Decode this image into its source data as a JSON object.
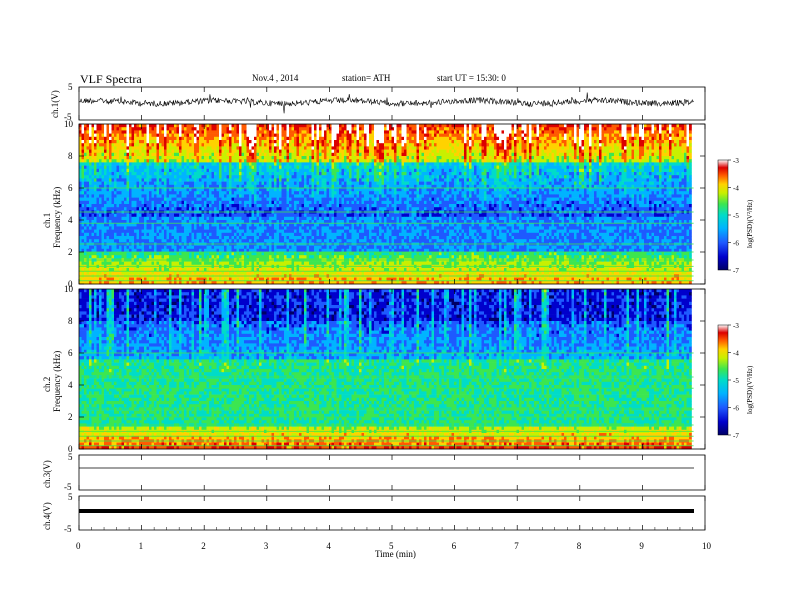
{
  "header": {
    "title": "VLF Spectra",
    "date": "Nov.4 , 2014",
    "station": "station= ATH",
    "start": "start UT = 15:30: 0"
  },
  "chart_data": [
    {
      "type": "line",
      "panel": "ch1-waveform",
      "ylabel": "ch.1(V)",
      "ylim": [
        -5,
        5
      ],
      "ytick_labels": [
        "5",
        "-5"
      ],
      "x_range_min": [
        0,
        9.82
      ],
      "description_values": {
        "mean": 0,
        "typical_range": [
          -1.5,
          1.5
        ]
      }
    },
    {
      "type": "heatmap",
      "panel": "ch1-spectrogram",
      "ylabel": "ch.1 Frequency (kHz)",
      "ylim": [
        0,
        10
      ],
      "ytick_labels": [
        "0",
        "2",
        "4",
        "6",
        "8",
        "10"
      ],
      "colorbar": {
        "label": "log(PSD)(V²/Hz)",
        "range": [
          -7,
          -3
        ],
        "tick_labels": [
          "-3",
          "-4",
          "-5",
          "-6",
          "-7"
        ]
      }
    },
    {
      "type": "heatmap",
      "panel": "ch2-spectrogram",
      "ylabel": "ch.2 Frequency (kHz)",
      "ylim": [
        0,
        10
      ],
      "ytick_labels": [
        "0",
        "2",
        "4",
        "6",
        "8",
        "10"
      ],
      "colorbar": {
        "label": "log(PSD)(V²/Hz)",
        "range": [
          -7,
          -3
        ],
        "tick_labels": [
          "-3",
          "-4",
          "-5",
          "-6",
          "-7"
        ]
      }
    },
    {
      "type": "line",
      "panel": "ch3-waveform",
      "ylabel": "ch.3(V)",
      "ylim": [
        -5,
        5
      ],
      "ytick_labels": [
        "5",
        "-5"
      ],
      "level": 0
    },
    {
      "type": "line",
      "panel": "ch4-waveform",
      "ylabel": "ch.4(V)",
      "ylim": [
        -5,
        5
      ],
      "ytick_labels": [
        "5",
        "-5"
      ],
      "level": 0
    }
  ],
  "x_axis": {
    "label": "Time (min)",
    "range": [
      0,
      10
    ],
    "tick_labels": [
      "0",
      "1",
      "2",
      "3",
      "4",
      "5",
      "6",
      "7",
      "8",
      "9",
      "10"
    ],
    "data_end": 9.82
  },
  "colormap": [
    "#000066",
    "#0000cc",
    "#1e5aff",
    "#00b4ff",
    "#00dcc8",
    "#3ce650",
    "#c8f000",
    "#ffd200",
    "#ff5a00",
    "#dc0000",
    "#ffffff"
  ]
}
